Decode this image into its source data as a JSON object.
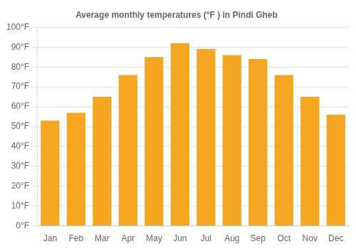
{
  "chart_data": {
    "type": "bar",
    "title": "Average monthly temperatures (°F ) in Pindi Gheb",
    "categories": [
      "Jan",
      "Feb",
      "Mar",
      "Apr",
      "May",
      "Jun",
      "Jul",
      "Aug",
      "Sep",
      "Oct",
      "Nov",
      "Dec"
    ],
    "values": [
      53,
      57,
      65,
      76,
      85,
      92,
      89,
      86,
      84,
      76,
      65,
      56
    ],
    "color": "#F5A623",
    "ylim": [
      0,
      100
    ],
    "yticks": [
      {
        "value": 0,
        "label": "0°F"
      },
      {
        "value": 10,
        "label": "10°F"
      },
      {
        "value": 20,
        "label": "20°F"
      },
      {
        "value": 30,
        "label": "30°F"
      },
      {
        "value": 40,
        "label": "40°F"
      },
      {
        "value": 50,
        "label": "50°F"
      },
      {
        "value": 60,
        "label": "60°F"
      },
      {
        "value": 70,
        "label": "70°F"
      },
      {
        "value": 80,
        "label": "80°F"
      },
      {
        "value": 90,
        "label": "90°F"
      },
      {
        "value": 100,
        "label": "100°F"
      }
    ],
    "grid": true
  }
}
